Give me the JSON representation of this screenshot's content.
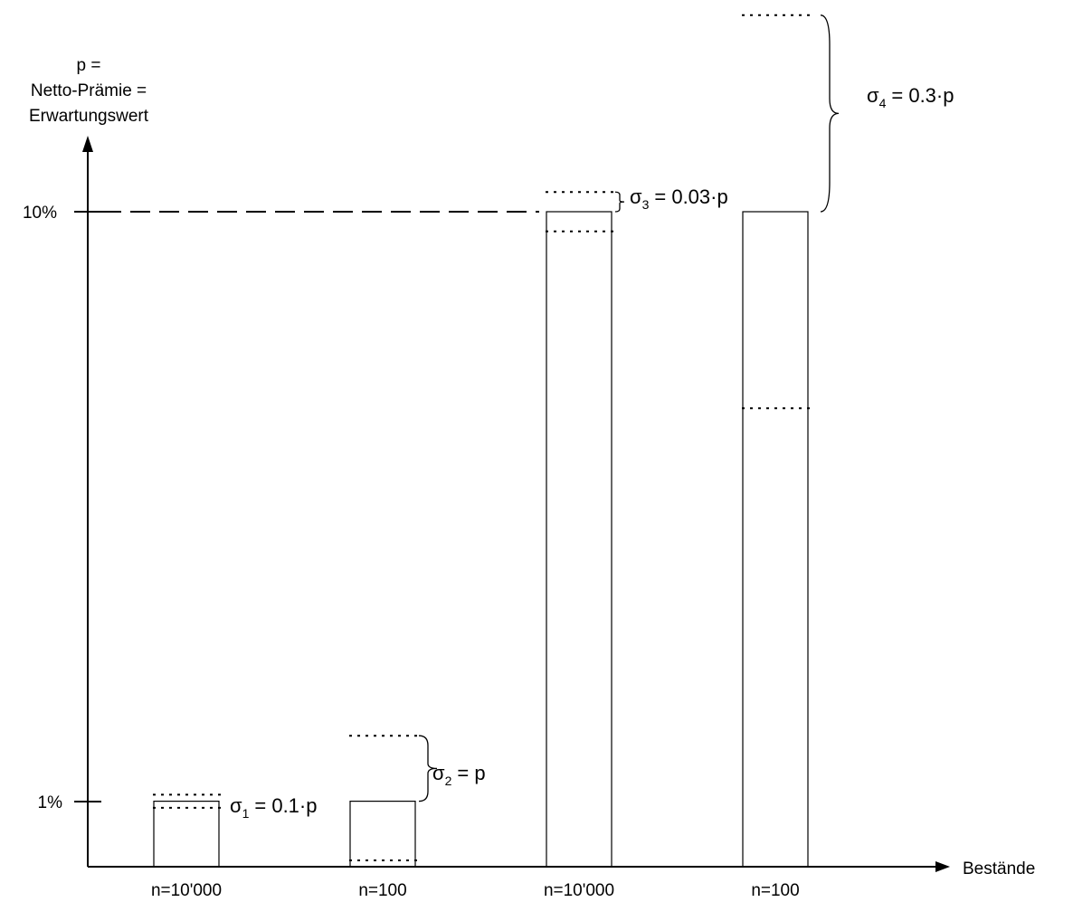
{
  "chart_data": {
    "type": "bar",
    "y_axis_title_lines": [
      "p =",
      "Netto-Prämie =",
      "Erwartungswert"
    ],
    "xlabel": "Bestände",
    "y_ticks": [
      {
        "label": "10%",
        "value": 10
      },
      {
        "label": "1%",
        "value": 1
      }
    ],
    "categories": [
      "n=10'000",
      "n=100",
      "n=10'000",
      "n=100"
    ],
    "values": [
      1,
      1,
      10,
      10
    ],
    "sigma_labels": [
      {
        "symbol": "σ",
        "index": "1",
        "expr": "= 0.1·p",
        "factor": 0.1
      },
      {
        "symbol": "σ",
        "index": "2",
        "expr": "= p",
        "factor": 1
      },
      {
        "symbol": "σ",
        "index": "3",
        "expr": "= 0.03·p",
        "factor": 0.03
      },
      {
        "symbol": "σ",
        "index": "4",
        "expr": "= 0.3·p",
        "factor": 0.3
      }
    ],
    "reference_line_value": 10
  }
}
